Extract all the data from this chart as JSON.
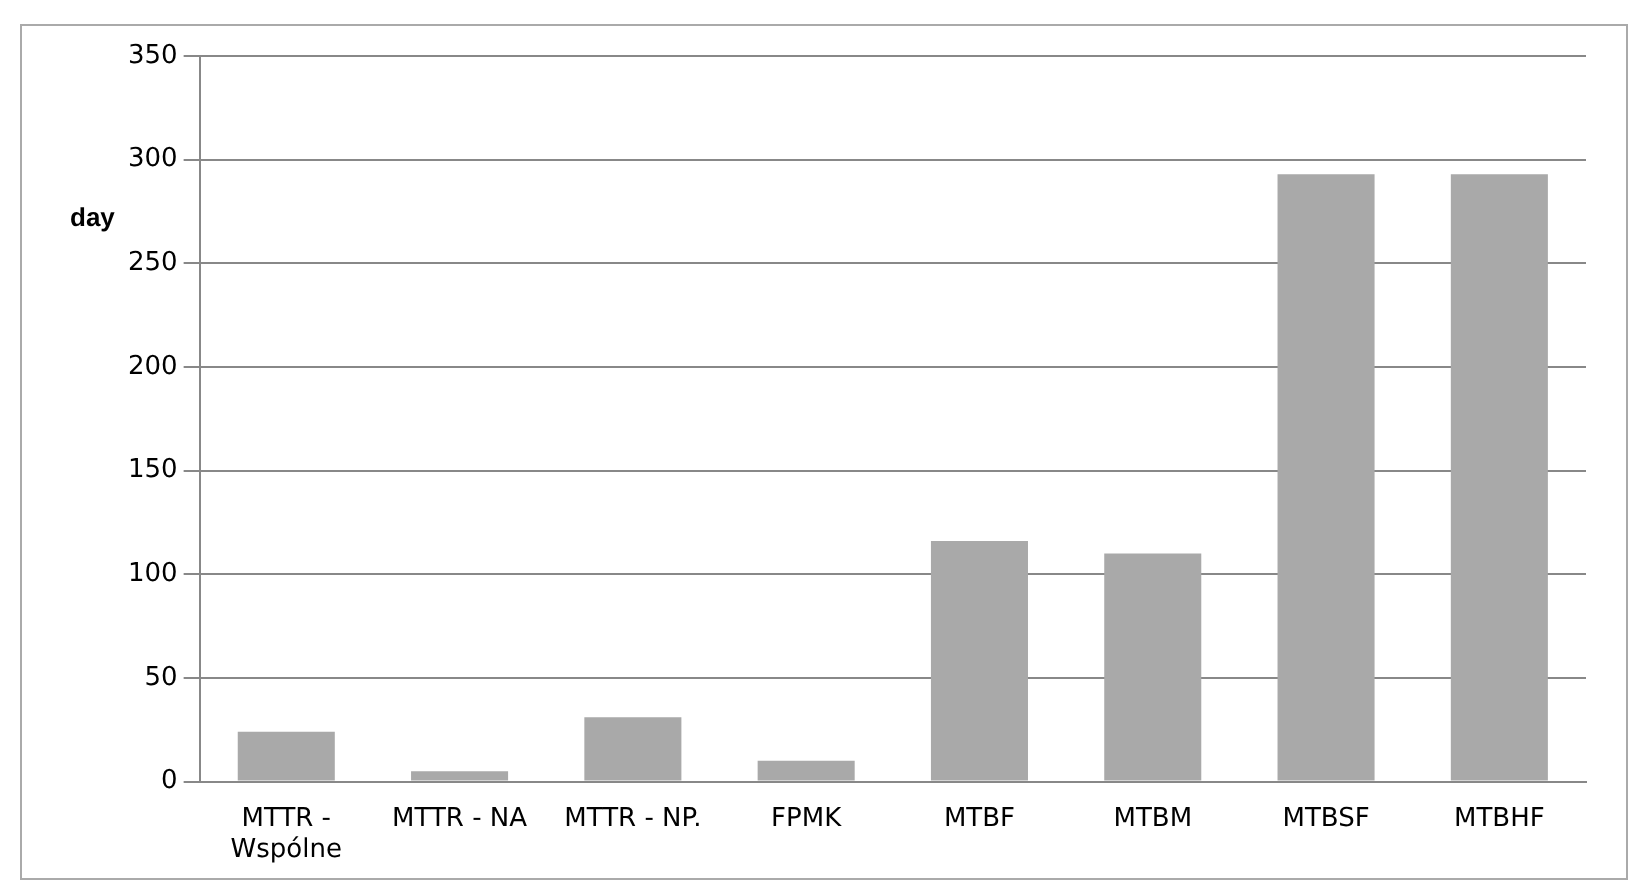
{
  "chart_data": {
    "type": "bar",
    "ylabel": "day",
    "categories": [
      "MTTR - Wspólne",
      "MTTR - NA",
      "MTTR - NP.",
      "FPMK",
      "MTBF",
      "MTBM",
      "MTBSF",
      "MTBHF"
    ],
    "values": [
      24,
      5,
      31,
      10,
      116,
      110,
      293,
      293
    ],
    "color": "#a9a9a9",
    "ylim": [
      0,
      350
    ],
    "yticks": [
      0,
      50,
      100,
      150,
      200,
      250,
      300,
      350
    ],
    "grid": "y"
  }
}
